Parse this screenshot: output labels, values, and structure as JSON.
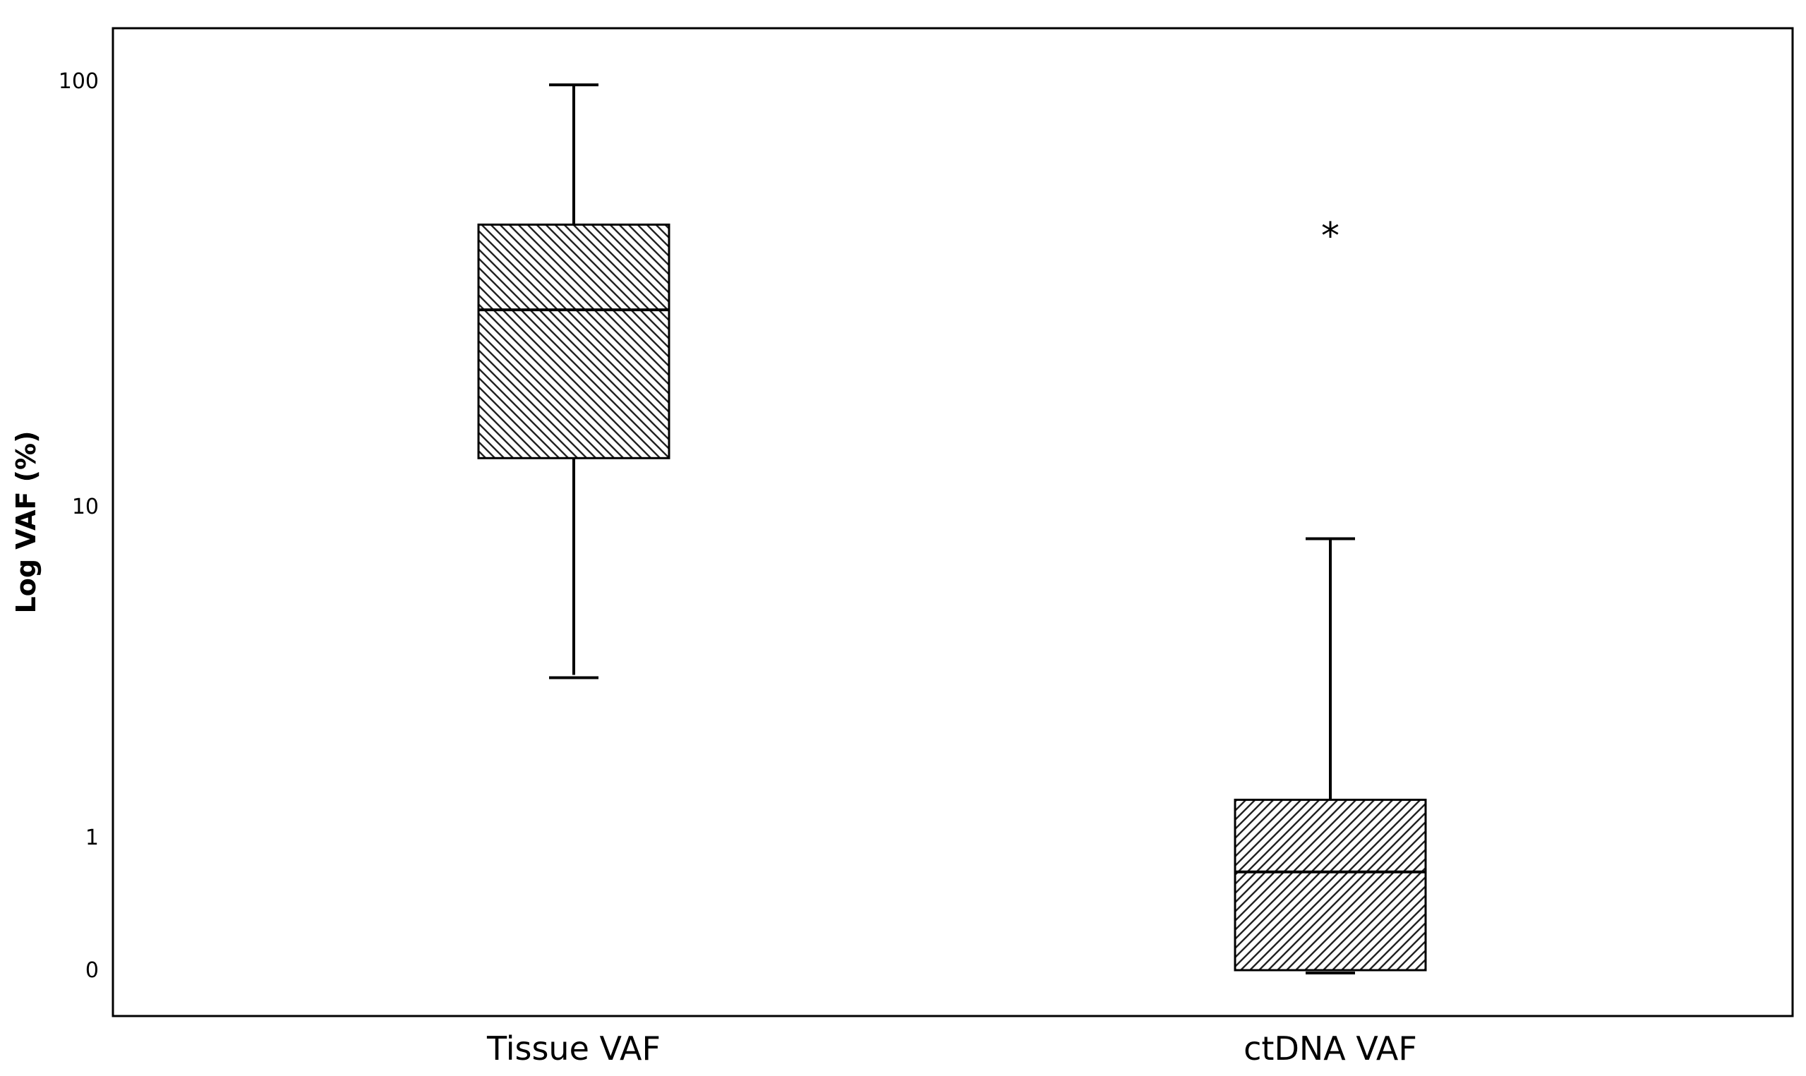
{
  "chart_data": {
    "type": "boxplot",
    "ylabel": "Log VAF (%)",
    "yscale": "log",
    "yticks": [
      {
        "value": 0.1,
        "label": "0"
      },
      {
        "value": 1,
        "label": "1"
      },
      {
        "value": 10,
        "label": "10"
      },
      {
        "value": 100,
        "label": "100"
      }
    ],
    "ylim": [
      0.07,
      140
    ],
    "grid": false,
    "legend": "none",
    "categories": [
      "Tissue VAF",
      "ctDNA VAF"
    ],
    "boxes": [
      {
        "category": "Tissue VAF",
        "whisker_low": 3.1,
        "q1": 13.0,
        "median": 29.0,
        "q3": 46.0,
        "whisker_high": 98.0,
        "outliers": [],
        "hatch": "backslash"
      },
      {
        "category": "ctDNA VAF",
        "whisker_low": 0.1,
        "q1": 0.1,
        "median": 0.55,
        "q3": 1.3,
        "whisker_high": 8.0,
        "outliers": [
          {
            "value": 45.0,
            "marker": "*"
          }
        ],
        "hatch": "slash"
      }
    ]
  }
}
